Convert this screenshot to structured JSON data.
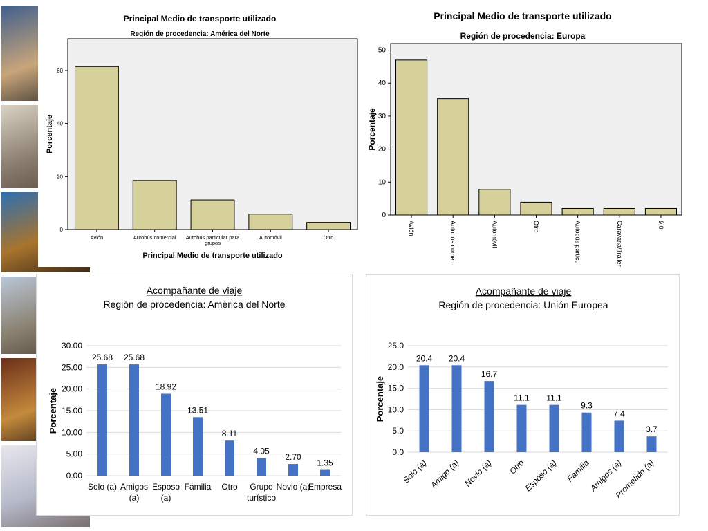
{
  "photos": [
    {
      "name": "photo-cafe",
      "colors": [
        "#3f5f8c",
        "#c9a57a",
        "#2b2b2b"
      ]
    },
    {
      "name": "photo-street",
      "colors": [
        "#d9d2c4",
        "#8a7e70",
        "#5a4a3c"
      ]
    },
    {
      "name": "photo-balcony",
      "colors": [
        "#2f6fb0",
        "#a8742d",
        "#3b2a1a"
      ]
    },
    {
      "name": "photo-church",
      "colors": [
        "#b9c7d8",
        "#8a8070",
        "#4b4238"
      ]
    },
    {
      "name": "photo-interior",
      "colors": [
        "#6b2f1a",
        "#c48a3c",
        "#2a1a12"
      ]
    },
    {
      "name": "photo-mall",
      "colors": [
        "#e8e8ee",
        "#b4b8c8",
        "#7a6e70"
      ]
    }
  ],
  "charts": [
    {
      "id": "chart-transport-north-america",
      "type": "bar",
      "title": "Principal Medio de transporte utilizado",
      "subtitle": "Región de procedencia: América del Norte",
      "xlabel": "Principal Medio de transporte utilizado",
      "ylabel": "Porcentaje",
      "ylim": [
        0,
        72
      ],
      "yticks": [
        0,
        20,
        40,
        60
      ],
      "categories": [
        "Avión",
        "Autobús comercial",
        "Autobús particular para grupos",
        "Automóvil",
        "Otro"
      ],
      "values": [
        61.5,
        18.5,
        11.2,
        5.8,
        2.7
      ],
      "bar_color": "#d6d09a",
      "plot_bg": "#f0f0f0",
      "grid": false,
      "legend": "none"
    },
    {
      "id": "chart-transport-europe",
      "type": "bar",
      "title": "Principal Medio de transporte utilizado",
      "subtitle": "Región de procedencia: Europa",
      "xlabel": "",
      "ylabel": "Porcentaje",
      "ylim": [
        0,
        52
      ],
      "yticks": [
        0,
        10,
        20,
        30,
        40,
        50
      ],
      "categories": [
        "Avión",
        "Autobús comerc",
        "Automóvil",
        "Otro",
        "Autobús particu",
        "Caravana/Trailer",
        "9.0"
      ],
      "values": [
        47,
        35.3,
        7.8,
        3.9,
        2,
        2,
        2
      ],
      "bar_color": "#d6d09a",
      "plot_bg": "#f0f0f0",
      "grid": false,
      "legend": "none"
    },
    {
      "id": "chart-companion-north-america",
      "type": "bar",
      "title": "Acompañante de viaje",
      "subtitle": "Región de procedencia: América del Norte",
      "xlabel": "",
      "ylabel": "Porcentaje",
      "ylim": [
        0,
        30
      ],
      "yticks": [
        "0.00",
        "5.00",
        "10.00",
        "15.00",
        "20.00",
        "25.00",
        "30.00"
      ],
      "categories": [
        "Solo (a)",
        "Amigos (a)",
        "Esposo (a)",
        "Familia",
        "Otro",
        "Grupo turístico",
        "Novio (a)",
        "Empresa"
      ],
      "values": [
        25.68,
        25.68,
        18.92,
        13.51,
        8.11,
        4.05,
        2.7,
        1.35
      ],
      "data_labels": [
        "25.68",
        "25.68",
        "18.92",
        "13.51",
        "8.11",
        "4.05",
        "2.70",
        "1.35"
      ],
      "bar_color": "#4472c4",
      "grid": true,
      "legend": "none"
    },
    {
      "id": "chart-companion-european-union",
      "type": "bar",
      "title": "Acompañante de viaje",
      "subtitle": "Región de procedencia: Unión Europea",
      "xlabel": "",
      "ylabel": "Porcentaje",
      "ylim": [
        0,
        25
      ],
      "yticks": [
        "0.0",
        "5.0",
        "10.0",
        "15.0",
        "20.0",
        "25.0"
      ],
      "categories": [
        "Solo (a)",
        "Amigo (a)",
        "Novio (a)",
        "Otro",
        "Esposo (a)",
        "Familia",
        "Amigos (a)",
        "Prometido (a)"
      ],
      "values": [
        20.4,
        20.4,
        16.7,
        11.1,
        11.1,
        9.3,
        7.4,
        3.7
      ],
      "data_labels": [
        "20.4",
        "20.4",
        "16.7",
        "11.1",
        "11.1",
        "9.3",
        "7.4",
        "3.7"
      ],
      "bar_color": "#4472c4",
      "grid": true,
      "legend": "none"
    }
  ]
}
